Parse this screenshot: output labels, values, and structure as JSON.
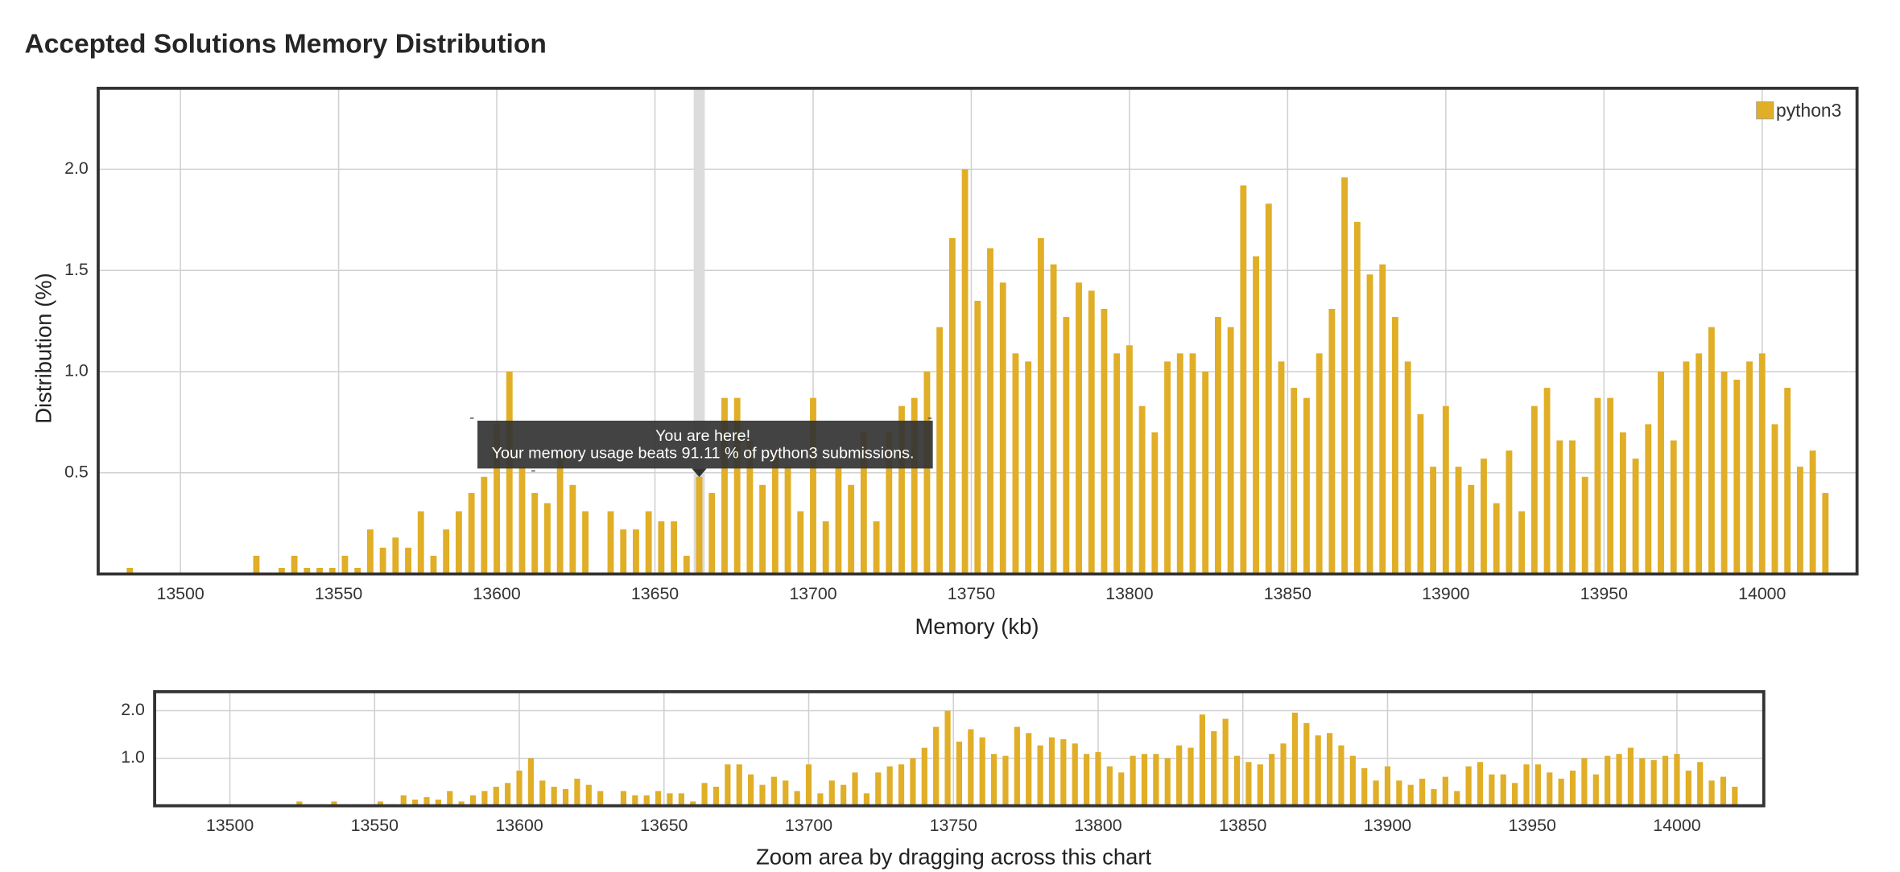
{
  "chart_data": [
    {
      "type": "bar",
      "title": "Accepted Solutions Memory Distribution",
      "x_label": "Memory (kb)",
      "y_label": "Distribution (%)",
      "x": [
        13484,
        13524,
        13532,
        13536,
        13540,
        13544,
        13548,
        13552,
        13556,
        13560,
        13564,
        13568,
        13572,
        13576,
        13580,
        13584,
        13588,
        13592,
        13596,
        13600,
        13604,
        13608,
        13612,
        13616,
        13620,
        13624,
        13628,
        13636,
        13640,
        13644,
        13648,
        13652,
        13656,
        13660,
        13664,
        13668,
        13672,
        13676,
        13680,
        13684,
        13688,
        13692,
        13696,
        13700,
        13704,
        13708,
        13712,
        13716,
        13720,
        13724,
        13728,
        13732,
        13736,
        13740,
        13744,
        13748,
        13752,
        13756,
        13760,
        13764,
        13768,
        13772,
        13776,
        13780,
        13784,
        13788,
        13792,
        13796,
        13800,
        13804,
        13808,
        13812,
        13816,
        13820,
        13824,
        13828,
        13832,
        13836,
        13840,
        13844,
        13848,
        13852,
        13856,
        13860,
        13864,
        13868,
        13872,
        13876,
        13880,
        13884,
        13888,
        13892,
        13896,
        13900,
        13904,
        13908,
        13912,
        13916,
        13920,
        13924,
        13928,
        13932,
        13936,
        13940,
        13944,
        13948,
        13952,
        13956,
        13960,
        13964,
        13968,
        13972,
        13976,
        13980,
        13984,
        13988,
        13992,
        13996,
        14000,
        14004,
        14008,
        14012,
        14016,
        14020
      ],
      "series": [
        {
          "name": "python3",
          "color": "#e0ae27",
          "values": [
            0.03,
            0.09,
            0.03,
            0.09,
            0.03,
            0.03,
            0.03,
            0.09,
            0.03,
            0.22,
            0.13,
            0.18,
            0.13,
            0.31,
            0.09,
            0.22,
            0.31,
            0.4,
            0.48,
            0.74,
            1.0,
            0.53,
            0.4,
            0.35,
            0.57,
            0.44,
            0.31,
            0.31,
            0.22,
            0.22,
            0.31,
            0.26,
            0.26,
            0.09,
            0.48,
            0.4,
            0.87,
            0.87,
            0.66,
            0.44,
            0.61,
            0.53,
            0.31,
            0.87,
            0.26,
            0.53,
            0.44,
            0.7,
            0.26,
            0.7,
            0.83,
            0.87,
            1.0,
            1.22,
            1.66,
            2.0,
            1.35,
            1.61,
            1.44,
            1.09,
            1.05,
            1.66,
            1.53,
            1.27,
            1.44,
            1.4,
            1.31,
            1.09,
            1.13,
            0.83,
            0.7,
            1.05,
            1.09,
            1.09,
            1.0,
            1.27,
            1.22,
            1.92,
            1.57,
            1.83,
            1.05,
            0.92,
            0.87,
            1.09,
            1.31,
            1.96,
            1.74,
            1.48,
            1.53,
            1.27,
            1.05,
            0.79,
            0.53,
            0.83,
            0.53,
            0.44,
            0.57,
            0.35,
            0.61,
            0.31,
            0.83,
            0.92,
            0.66,
            0.66,
            0.48,
            0.87,
            0.87,
            0.7,
            0.57,
            0.74,
            1.0,
            0.66,
            1.05,
            1.09,
            1.22,
            1.0,
            0.96,
            1.05,
            1.09,
            0.74,
            0.92,
            0.53,
            0.61,
            0.4
          ]
        }
      ],
      "xlim": [
        13474,
        14030
      ],
      "ylim": [
        0,
        2.4
      ],
      "xticks": [
        13500,
        13550,
        13600,
        13650,
        13700,
        13750,
        13800,
        13850,
        13900,
        13950,
        14000
      ],
      "yticks": [
        {
          "value": 0.5,
          "label": "0.5"
        },
        {
          "value": 1.0,
          "label": "1.0"
        },
        {
          "value": 1.5,
          "label": "1.5"
        },
        {
          "value": 2.0,
          "label": "2.0"
        }
      ],
      "grid": true,
      "legend": "top-right",
      "annotation": {
        "x": 13664,
        "title": "You are here!",
        "text": "Your memory usage beats 91.11 % of python3 submissions."
      }
    },
    {
      "type": "bar",
      "caption": "Zoom area by dragging across this chart",
      "xlim": [
        13474,
        14030
      ],
      "ylim": [
        0,
        2.4
      ],
      "xticks": [
        13500,
        13550,
        13600,
        13650,
        13700,
        13750,
        13800,
        13850,
        13900,
        13950,
        14000
      ],
      "yticks": [
        {
          "value": 1.0,
          "label": "1.0"
        },
        {
          "value": 2.0,
          "label": "2.0"
        }
      ],
      "grid": true
    }
  ]
}
